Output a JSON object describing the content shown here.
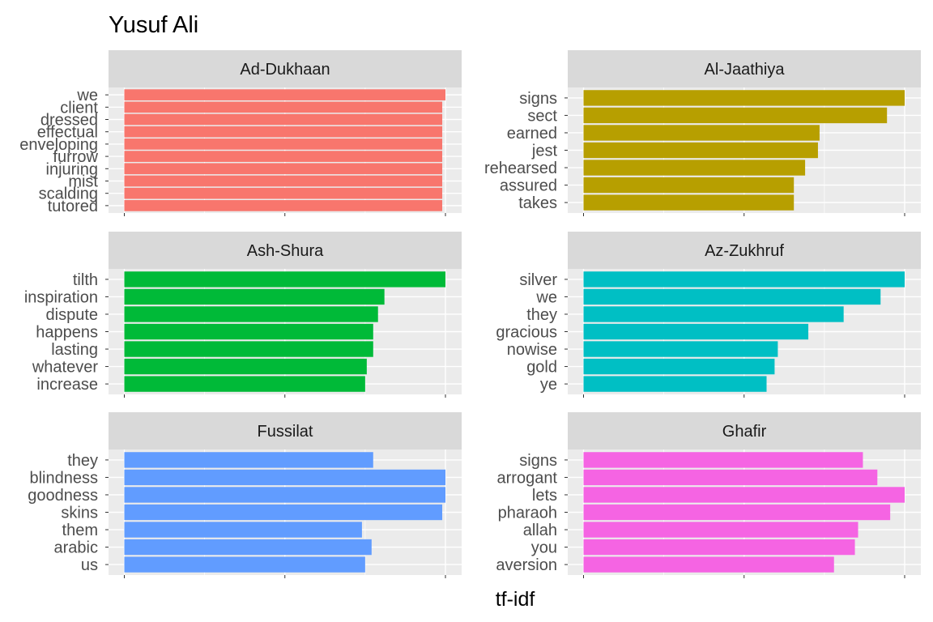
{
  "chart_data": {
    "type": "bar",
    "orientation": "horizontal",
    "title": "Yusuf Ali",
    "xlabel": "tf-idf",
    "ylabel": "",
    "x_tick_labels_shown": false,
    "grid": true,
    "facets": [
      {
        "name": "Ad-Dukhaan",
        "color": "#F8766D",
        "categories": [
          "we",
          "client",
          "dressed",
          "effectual",
          "enveloping",
          "furrow",
          "injuring",
          "mist",
          "scalding",
          "tutored"
        ],
        "values": [
          1.0,
          0.99,
          0.99,
          0.99,
          0.99,
          0.99,
          0.99,
          0.99,
          0.99,
          0.99
        ]
      },
      {
        "name": "Al-Jaathiya",
        "color": "#B79F00",
        "categories": [
          "signs",
          "sect",
          "earned",
          "jest",
          "rehearsed",
          "assured",
          "takes"
        ],
        "values": [
          1.0,
          0.945,
          0.735,
          0.73,
          0.69,
          0.655,
          0.655
        ]
      },
      {
        "name": "Ash-Shura",
        "color": "#00BA38",
        "categories": [
          "tilth",
          "inspiration",
          "dispute",
          "happens",
          "lasting",
          "whatever",
          "increase"
        ],
        "values": [
          1.0,
          0.81,
          0.79,
          0.775,
          0.775,
          0.755,
          0.75
        ]
      },
      {
        "name": "Az-Zukhruf",
        "color": "#00BFC4",
        "categories": [
          "silver",
          "we",
          "they",
          "gracious",
          "nowise",
          "gold",
          "ye"
        ],
        "values": [
          1.0,
          0.925,
          0.81,
          0.7,
          0.605,
          0.595,
          0.57
        ]
      },
      {
        "name": "Fussilat",
        "color": "#619CFF",
        "categories": [
          "they",
          "blindness",
          "goodness",
          "skins",
          "them",
          "arabic",
          "us"
        ],
        "values": [
          0.775,
          1.0,
          1.0,
          0.99,
          0.74,
          0.77,
          0.75
        ]
      },
      {
        "name": "Ghafir",
        "color": "#F564E3",
        "categories": [
          "signs",
          "arrogant",
          "lets",
          "pharaoh",
          "allah",
          "you",
          "aversion"
        ],
        "values": [
          0.87,
          0.915,
          1.0,
          0.955,
          0.855,
          0.845,
          0.78
        ]
      }
    ]
  }
}
